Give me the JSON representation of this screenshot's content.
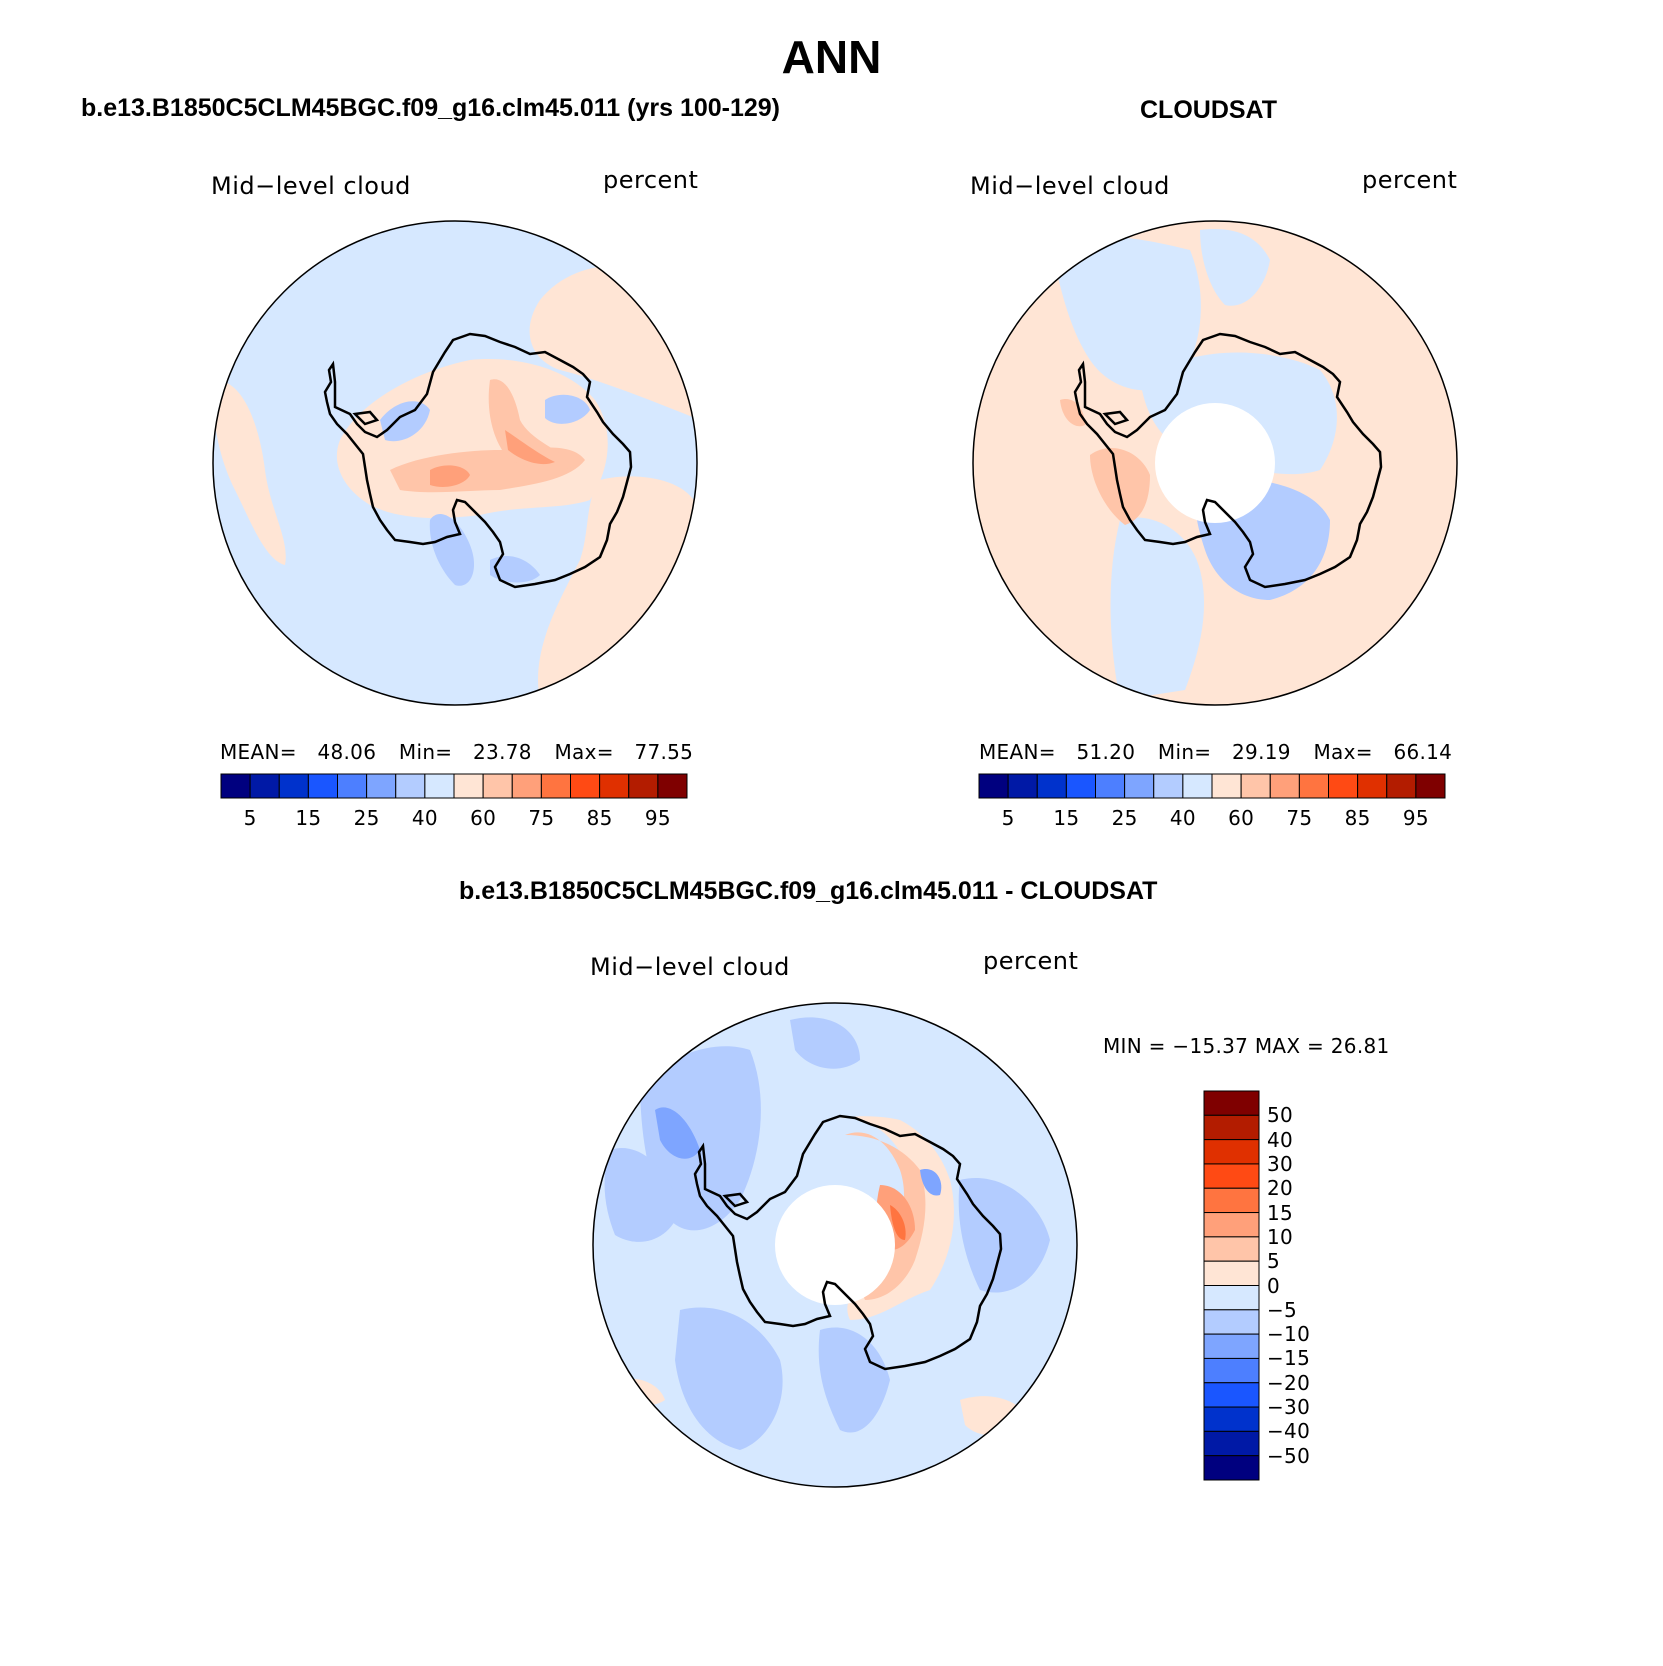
{
  "main_title": "ANN",
  "panel_model": {
    "title": "b.e13.B1850C5CLM45BGC.f09_g16.clm45.011 (yrs 100-129)",
    "left_label": "Mid−level cloud",
    "right_label": "percent",
    "stats": {
      "mean_label": "MEAN=",
      "mean": "48.06",
      "min_label": "Min=",
      "min": "23.78",
      "max_label": "Max=",
      "max": "77.55"
    }
  },
  "panel_obs": {
    "title": "CLOUDSAT",
    "left_label": "Mid−level cloud",
    "right_label": "percent",
    "stats": {
      "mean_label": "MEAN=",
      "mean": "51.20",
      "min_label": "Min=",
      "min": "29.19",
      "max_label": "Max=",
      "max": "66.14"
    }
  },
  "panel_diff": {
    "title": "b.e13.B1850C5CLM45BGC.f09_g16.clm45.011 - CLOUDSAT",
    "left_label": "Mid−level cloud",
    "right_label": "percent",
    "minmax": "MIN = −15.37 MAX =   26.81"
  },
  "colorbar_abs": {
    "colors": [
      "#00007f",
      "#0019a6",
      "#0032cc",
      "#1a56ff",
      "#4d7fff",
      "#7ea5ff",
      "#b3ccff",
      "#d6e8ff",
      "#ffe5d5",
      "#ffc5a9",
      "#ffa07a",
      "#ff7440",
      "#ff4a14",
      "#e03000",
      "#b31c00",
      "#7f0000"
    ],
    "tick_labels": [
      "5",
      "15",
      "25",
      "40",
      "60",
      "75",
      "85",
      "95"
    ]
  },
  "colorbar_diff": {
    "colors": [
      "#7f0000",
      "#b31c00",
      "#e03000",
      "#ff4a14",
      "#ff7440",
      "#ffa07a",
      "#ffc5a9",
      "#ffe5d5",
      "#d6e8ff",
      "#b3ccff",
      "#7ea5ff",
      "#4d7fff",
      "#1a56ff",
      "#0032cc",
      "#0019a6",
      "#00007f"
    ],
    "tick_labels": [
      "50",
      "40",
      "30",
      "20",
      "15",
      "10",
      "5",
      "0",
      "−5",
      "−10",
      "−15",
      "−20",
      "−30",
      "−40",
      "−50"
    ]
  }
}
